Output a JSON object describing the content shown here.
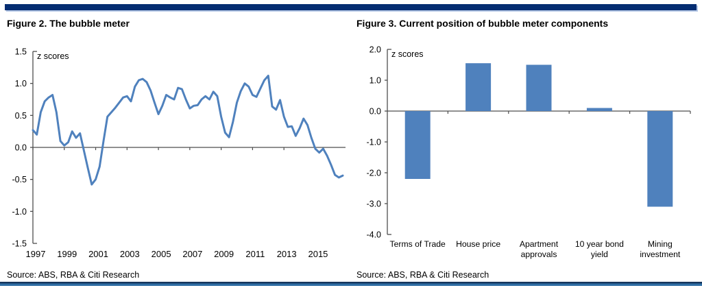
{
  "page": {
    "top_bar_color": "#042d72",
    "top_bar_shadow_color": "#b7c9e6",
    "bottom_rule_dark_color": "#16365d",
    "bottom_rule_light_color": "#2e6da4"
  },
  "figure2": {
    "title": "Figure 2. The bubble meter",
    "source": "Source: ABS, RBA & Citi Research"
  },
  "figure3": {
    "title": "Figure 3. Current position of bubble meter components",
    "source": "Source: ABS, RBA & Citi Research"
  },
  "chart_data": [
    {
      "id": "fig2-chart",
      "type": "line",
      "title": "Figure 2. The bubble meter",
      "unit_label": "z scores",
      "ylabel": "z scores",
      "xlabel": "",
      "ylim": [
        -1.5,
        1.5
      ],
      "yticks": [
        1.5,
        1.0,
        0.5,
        0.0,
        -0.5,
        -1.0,
        -1.5
      ],
      "ytick_labels": [
        "1.5",
        "1.0",
        "0.5",
        "0.0",
        "-0.5",
        "-1.0",
        "-1.5"
      ],
      "xtick_labels": [
        "1997",
        "1999",
        "2001",
        "2003",
        "2005",
        "2007",
        "2009",
        "2011",
        "2013",
        "2015"
      ],
      "x_frequency": "quarterly",
      "x_start": "1997Q1",
      "x_end": "2016Q4",
      "grid": false,
      "line_color": "#4f81bd",
      "axis_color": "#4d4d4d",
      "values": [
        0.27,
        0.2,
        0.55,
        0.72,
        0.78,
        0.82,
        0.55,
        0.1,
        0.03,
        0.08,
        0.25,
        0.15,
        0.22,
        -0.05,
        -0.32,
        -0.58,
        -0.5,
        -0.3,
        0.1,
        0.48,
        0.55,
        0.62,
        0.7,
        0.78,
        0.8,
        0.72,
        0.95,
        1.05,
        1.07,
        1.02,
        0.89,
        0.7,
        0.52,
        0.65,
        0.82,
        0.78,
        0.75,
        0.93,
        0.91,
        0.75,
        0.61,
        0.65,
        0.66,
        0.75,
        0.8,
        0.75,
        0.87,
        0.8,
        0.48,
        0.23,
        0.16,
        0.4,
        0.7,
        0.88,
        1.0,
        0.95,
        0.82,
        0.79,
        0.92,
        1.05,
        1.12,
        0.64,
        0.59,
        0.74,
        0.48,
        0.32,
        0.33,
        0.18,
        0.3,
        0.45,
        0.35,
        0.15,
        -0.02,
        -0.08,
        -0.02,
        -0.13,
        -0.27,
        -0.43,
        -0.47,
        -0.44
      ]
    },
    {
      "id": "fig3-chart",
      "type": "bar",
      "title": "Figure 3. Current position of bubble meter components",
      "unit_label": "z scores",
      "ylabel": "z scores",
      "xlabel": "",
      "ylim": [
        -4.0,
        2.0
      ],
      "yticks": [
        2.0,
        1.0,
        0.0,
        -1.0,
        -2.0,
        -3.0,
        -4.0
      ],
      "ytick_labels": [
        "2.0",
        "1.0",
        "0.0",
        "-1.0",
        "-2.0",
        "-3.0",
        "-4.0"
      ],
      "categories": [
        "Terms of Trade",
        "House price",
        "Apartment approvals",
        "10 year bond yield",
        "Mining investment"
      ],
      "category_label_lines": [
        [
          "Terms of Trade"
        ],
        [
          "House price"
        ],
        [
          "Apartment",
          "approvals"
        ],
        [
          "10 year bond",
          "yield"
        ],
        [
          "Mining",
          "investment"
        ]
      ],
      "values": [
        -2.2,
        1.55,
        1.5,
        0.1,
        -3.1
      ],
      "grid": false,
      "bar_color": "#4f81bd",
      "axis_color": "#4d4d4d"
    }
  ]
}
